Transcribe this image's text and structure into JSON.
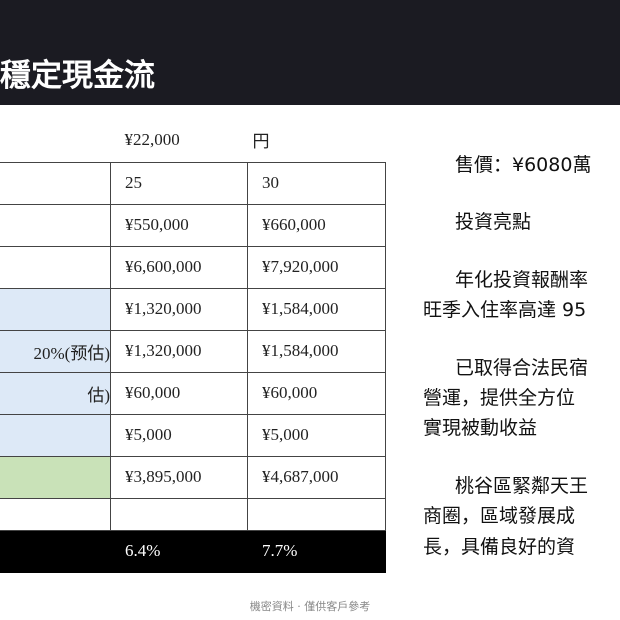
{
  "header": {
    "title": "穩定現金流"
  },
  "table": {
    "rows": [
      [
        null,
        "¥22,000",
        "円"
      ],
      [
        null,
        "25",
        "30"
      ],
      [
        null,
        "¥550,000",
        "¥660,000"
      ],
      [
        null,
        "¥6,600,000",
        "¥7,920,000"
      ],
      [
        null,
        "¥1,320,000",
        "¥1,584,000"
      ],
      [
        "20%(预估)",
        "¥1,320,000",
        "¥1,584,000"
      ],
      [
        "估)",
        "¥60,000",
        "¥60,000"
      ],
      [
        null,
        "¥5,000",
        "¥5,000"
      ],
      [
        null,
        "¥3,895,000",
        "¥4,687,000"
      ],
      [
        null,
        null,
        null
      ],
      [
        null,
        "6.4%",
        "7.7%"
      ]
    ]
  },
  "side": {
    "lines": [
      "售價：¥6080萬",
      "投資亮點",
      "年化投資報酬率",
      "旺季入住率高達 95",
      "已取得合法民宿",
      "營運，提供全方位",
      "實現被動收益",
      "桃谷區緊鄰天王",
      "商圈，區域發展成",
      "長，具備良好的資"
    ]
  },
  "footer": "機密資料 · 僅供客戶參考"
}
